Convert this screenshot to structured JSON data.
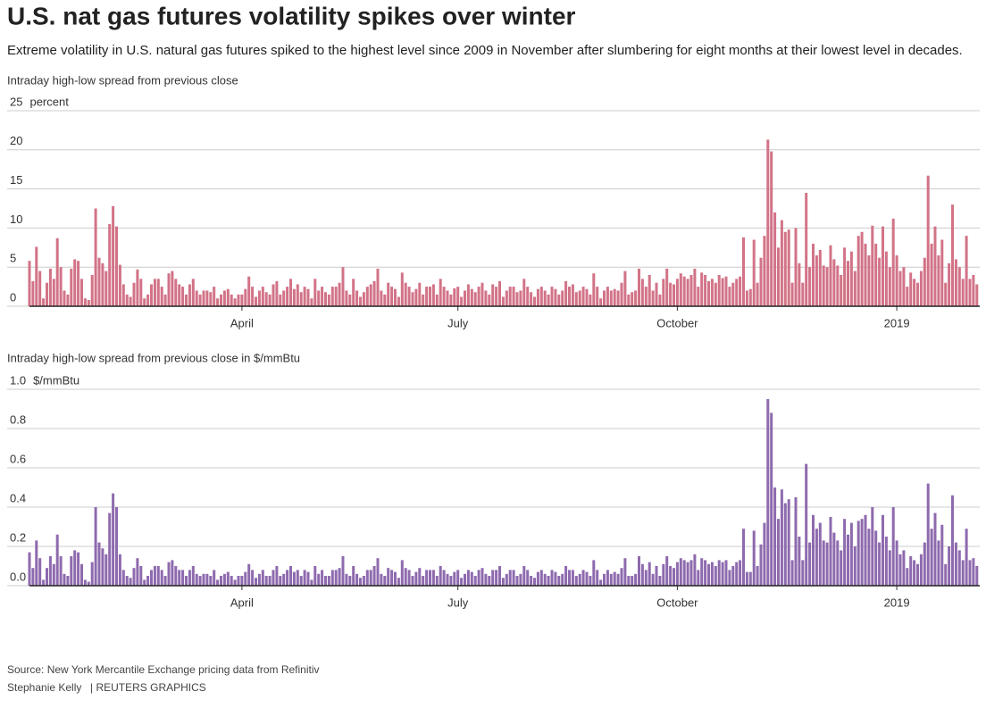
{
  "header": {
    "title": "U.S. nat gas futures volatility spikes over winter",
    "subtitle": "Extreme volatility in U.S. natural gas futures spiked to the highest level since 2009 in November after slumbering for eight months at their lowest level in decades."
  },
  "footer": {
    "source": "Source: New York Mercantile Exchange pricing data from Refinitiv",
    "credit": "Stephanie Kelly",
    "brand": "| REUTERS GRAPHICS"
  },
  "chart_data": [
    {
      "type": "bar",
      "title": "Intraday high-low spread from previous close",
      "y_unit": "percent",
      "color": "#d27387",
      "grid": true,
      "ylim": [
        0,
        25
      ],
      "yticks": [
        0,
        5,
        10,
        15,
        20,
        25
      ],
      "categories": [
        null,
        null,
        null,
        null,
        null,
        null,
        null,
        null,
        null,
        null,
        null,
        null,
        null,
        null,
        null,
        null,
        null,
        null,
        null,
        null,
        null,
        null,
        null,
        null,
        null,
        null,
        null,
        null,
        null,
        null,
        null,
        null,
        null,
        null,
        null,
        null,
        null,
        null,
        null,
        null,
        null,
        null,
        null,
        null,
        null,
        null,
        null,
        null,
        null,
        null,
        null,
        null,
        null,
        null,
        null,
        null,
        null,
        null,
        null,
        null,
        null,
        "April",
        null,
        null,
        null,
        null,
        null,
        null,
        null,
        null,
        null,
        null,
        null,
        null,
        null,
        null,
        null,
        null,
        null,
        null,
        null,
        null,
        null,
        null,
        null,
        null,
        null,
        null,
        null,
        null,
        null,
        null,
        null,
        null,
        null,
        null,
        null,
        null,
        null,
        null,
        null,
        null,
        null,
        null,
        null,
        null,
        null,
        null,
        null,
        null,
        null,
        null,
        null,
        null,
        null,
        null,
        null,
        null,
        null,
        null,
        null,
        null,
        null,
        "July",
        null,
        null,
        null,
        null,
        null,
        null,
        null,
        null,
        null,
        null,
        null,
        null,
        null,
        null,
        null,
        null,
        null,
        null,
        null,
        null,
        null,
        null,
        null,
        null,
        null,
        null,
        null,
        null,
        null,
        null,
        null,
        null,
        null,
        null,
        null,
        null,
        null,
        null,
        null,
        null,
        null,
        null,
        null,
        null,
        null,
        null,
        null,
        null,
        null,
        null,
        null,
        null,
        null,
        null,
        null,
        null,
        null,
        null,
        null,
        null,
        null,
        null,
        "October",
        null,
        null,
        null,
        null,
        null,
        null,
        null,
        null,
        null,
        null,
        null,
        null,
        null,
        null,
        null,
        null,
        null,
        null,
        null,
        null,
        null,
        null,
        null,
        null,
        null,
        null,
        null,
        null,
        null,
        null,
        null,
        null,
        null,
        null,
        null,
        null,
        null,
        null,
        null,
        null,
        null,
        null,
        null,
        null,
        null,
        null,
        null,
        null,
        null,
        null,
        null,
        null,
        null,
        null,
        null,
        null,
        null,
        null,
        null,
        null,
        null,
        null,
        "2019",
        null,
        null,
        null,
        null,
        null,
        null,
        null,
        null,
        null,
        null,
        null,
        null,
        null,
        null,
        null,
        null,
        null,
        null,
        null,
        null,
        null,
        null,
        null
      ],
      "values": [
        5.8,
        3.2,
        7.6,
        4.5,
        1.0,
        3.0,
        4.8,
        3.5,
        8.7,
        5.0,
        2.0,
        1.5,
        4.8,
        6.0,
        5.8,
        3.5,
        1.0,
        0.8,
        4.0,
        12.5,
        6.2,
        5.5,
        4.5,
        10.5,
        12.8,
        10.2,
        5.3,
        2.8,
        1.5,
        1.2,
        3.0,
        4.7,
        3.5,
        1.0,
        1.5,
        2.8,
        3.5,
        3.5,
        2.5,
        1.5,
        4.2,
        4.5,
        3.5,
        2.8,
        2.5,
        1.5,
        2.8,
        3.5,
        2.0,
        1.5,
        2.0,
        2.0,
        1.8,
        2.5,
        1.0,
        1.5,
        2.0,
        2.2,
        1.5,
        1.0,
        1.5,
        1.5,
        2.2,
        3.8,
        2.5,
        1.2,
        2.0,
        2.5,
        1.8,
        1.5,
        2.8,
        3.2,
        1.5,
        2.0,
        2.5,
        3.5,
        2.2,
        2.8,
        1.8,
        2.5,
        2.2,
        1.0,
        3.5,
        2.0,
        2.5,
        1.8,
        1.5,
        2.5,
        2.5,
        3.0,
        5.0,
        2.0,
        1.5,
        3.5,
        2.0,
        1.2,
        1.8,
        2.5,
        2.8,
        3.2,
        4.8,
        2.0,
        1.5,
        3.0,
        2.5,
        2.2,
        1.2,
        4.3,
        3.0,
        2.5,
        1.8,
        2.2,
        3.0,
        1.5,
        2.5,
        2.5,
        2.8,
        1.5,
        3.5,
        2.5,
        2.0,
        1.5,
        2.3,
        2.5,
        1.2,
        2.0,
        2.8,
        2.2,
        1.8,
        2.5,
        3.0,
        2.0,
        1.5,
        2.8,
        2.5,
        3.2,
        1.2,
        2.0,
        2.5,
        2.5,
        1.8,
        2.0,
        3.5,
        2.5,
        1.8,
        1.2,
        2.2,
        2.5,
        2.0,
        1.5,
        2.5,
        2.2,
        1.5,
        2.0,
        3.2,
        2.5,
        2.8,
        1.8,
        2.0,
        2.5,
        2.2,
        1.5,
        4.2,
        2.5,
        1.0,
        2.0,
        2.5,
        2.0,
        2.2,
        2.0,
        3.0,
        4.5,
        1.5,
        1.8,
        2.0,
        4.8,
        3.5,
        2.5,
        4.0,
        2.0,
        3.0,
        1.5,
        3.5,
        4.8,
        3.0,
        2.8,
        3.5,
        4.2,
        3.8,
        3.5,
        4.0,
        4.8,
        2.5,
        4.3,
        4.0,
        3.2,
        3.5,
        3.0,
        4.0,
        3.6,
        3.8,
        2.5,
        3.0,
        3.5,
        3.8,
        8.8,
        2.0,
        2.2,
        8.5,
        3.0,
        6.2,
        9.0,
        21.3,
        19.8,
        12.0,
        7.5,
        11.0,
        9.5,
        9.8,
        3.0,
        10.0,
        5.5,
        3.0,
        14.5,
        5.0,
        8.0,
        6.5,
        7.2,
        5.2,
        5.0,
        7.8,
        6.0,
        5.2,
        4.0,
        7.5,
        5.8,
        7.0,
        4.5,
        9.0,
        9.5,
        8.0,
        6.5,
        10.3,
        8.0,
        6.2,
        10.2,
        7.0,
        5.0,
        11.2,
        6.5,
        4.5,
        5.0,
        2.5,
        4.3,
        3.5,
        3.0,
        4.5,
        6.2,
        16.7,
        8.0,
        10.2,
        6.5,
        8.5,
        3.0,
        5.5,
        13.0,
        6.0,
        5.0,
        3.5,
        9.0,
        3.5,
        4.0,
        2.8
      ]
    },
    {
      "type": "bar",
      "title": "Intraday high-low spread from previous close in $/mmBtu",
      "y_unit": "$/mmBtu",
      "color": "#8e6aae",
      "grid": true,
      "ylim": [
        0,
        1
      ],
      "yticks": [
        {
          "value": 0,
          "label": "0.0"
        },
        0.2,
        0.4,
        0.6,
        0.8,
        {
          "value": 1,
          "label": "1.0"
        }
      ],
      "categories": [
        null,
        null,
        null,
        null,
        null,
        null,
        null,
        null,
        null,
        null,
        null,
        null,
        null,
        null,
        null,
        null,
        null,
        null,
        null,
        null,
        null,
        null,
        null,
        null,
        null,
        null,
        null,
        null,
        null,
        null,
        null,
        null,
        null,
        null,
        null,
        null,
        null,
        null,
        null,
        null,
        null,
        null,
        null,
        null,
        null,
        null,
        null,
        null,
        null,
        null,
        null,
        null,
        null,
        null,
        null,
        null,
        null,
        null,
        null,
        null,
        null,
        "April",
        null,
        null,
        null,
        null,
        null,
        null,
        null,
        null,
        null,
        null,
        null,
        null,
        null,
        null,
        null,
        null,
        null,
        null,
        null,
        null,
        null,
        null,
        null,
        null,
        null,
        null,
        null,
        null,
        null,
        null,
        null,
        null,
        null,
        null,
        null,
        null,
        null,
        null,
        null,
        null,
        null,
        null,
        null,
        null,
        null,
        null,
        null,
        null,
        null,
        null,
        null,
        null,
        null,
        null,
        null,
        null,
        null,
        null,
        null,
        null,
        null,
        "July",
        null,
        null,
        null,
        null,
        null,
        null,
        null,
        null,
        null,
        null,
        null,
        null,
        null,
        null,
        null,
        null,
        null,
        null,
        null,
        null,
        null,
        null,
        null,
        null,
        null,
        null,
        null,
        null,
        null,
        null,
        null,
        null,
        null,
        null,
        null,
        null,
        null,
        null,
        null,
        null,
        null,
        null,
        null,
        null,
        null,
        null,
        null,
        null,
        null,
        null,
        null,
        null,
        null,
        null,
        null,
        null,
        null,
        null,
        null,
        null,
        null,
        null,
        "October",
        null,
        null,
        null,
        null,
        null,
        null,
        null,
        null,
        null,
        null,
        null,
        null,
        null,
        null,
        null,
        null,
        null,
        null,
        null,
        null,
        null,
        null,
        null,
        null,
        null,
        null,
        null,
        null,
        null,
        null,
        null,
        null,
        null,
        null,
        null,
        null,
        null,
        null,
        null,
        null,
        null,
        null,
        null,
        null,
        null,
        null,
        null,
        null,
        null,
        null,
        null,
        null,
        null,
        null,
        null,
        null,
        null,
        null,
        null,
        null,
        null,
        null,
        "2019",
        null,
        null,
        null,
        null,
        null,
        null,
        null,
        null,
        null,
        null,
        null,
        null,
        null,
        null,
        null,
        null,
        null,
        null,
        null,
        null,
        null,
        null,
        null
      ],
      "values": [
        0.17,
        0.09,
        0.23,
        0.14,
        0.03,
        0.09,
        0.15,
        0.11,
        0.26,
        0.15,
        0.06,
        0.05,
        0.15,
        0.18,
        0.17,
        0.11,
        0.03,
        0.02,
        0.12,
        0.4,
        0.22,
        0.19,
        0.16,
        0.37,
        0.47,
        0.4,
        0.16,
        0.08,
        0.05,
        0.04,
        0.09,
        0.14,
        0.1,
        0.03,
        0.05,
        0.08,
        0.1,
        0.1,
        0.08,
        0.05,
        0.12,
        0.13,
        0.1,
        0.08,
        0.08,
        0.05,
        0.08,
        0.1,
        0.06,
        0.05,
        0.06,
        0.06,
        0.05,
        0.08,
        0.03,
        0.05,
        0.06,
        0.07,
        0.05,
        0.03,
        0.05,
        0.05,
        0.07,
        0.11,
        0.08,
        0.04,
        0.06,
        0.08,
        0.05,
        0.05,
        0.08,
        0.1,
        0.05,
        0.06,
        0.08,
        0.1,
        0.07,
        0.08,
        0.05,
        0.08,
        0.07,
        0.03,
        0.1,
        0.06,
        0.08,
        0.05,
        0.05,
        0.08,
        0.08,
        0.09,
        0.15,
        0.06,
        0.05,
        0.1,
        0.06,
        0.04,
        0.05,
        0.08,
        0.08,
        0.1,
        0.14,
        0.06,
        0.05,
        0.09,
        0.08,
        0.07,
        0.04,
        0.13,
        0.09,
        0.08,
        0.05,
        0.07,
        0.09,
        0.05,
        0.08,
        0.08,
        0.08,
        0.05,
        0.1,
        0.08,
        0.06,
        0.05,
        0.07,
        0.08,
        0.04,
        0.06,
        0.08,
        0.07,
        0.05,
        0.08,
        0.09,
        0.06,
        0.05,
        0.08,
        0.08,
        0.1,
        0.04,
        0.06,
        0.08,
        0.08,
        0.05,
        0.06,
        0.1,
        0.08,
        0.05,
        0.04,
        0.07,
        0.08,
        0.06,
        0.05,
        0.08,
        0.07,
        0.05,
        0.06,
        0.1,
        0.08,
        0.08,
        0.05,
        0.06,
        0.08,
        0.07,
        0.05,
        0.13,
        0.08,
        0.03,
        0.06,
        0.08,
        0.06,
        0.07,
        0.06,
        0.09,
        0.14,
        0.05,
        0.05,
        0.06,
        0.15,
        0.11,
        0.08,
        0.12,
        0.06,
        0.1,
        0.05,
        0.11,
        0.15,
        0.1,
        0.09,
        0.12,
        0.14,
        0.13,
        0.12,
        0.13,
        0.16,
        0.08,
        0.14,
        0.13,
        0.11,
        0.12,
        0.1,
        0.13,
        0.12,
        0.13,
        0.08,
        0.1,
        0.12,
        0.13,
        0.29,
        0.07,
        0.07,
        0.28,
        0.1,
        0.21,
        0.32,
        0.95,
        0.88,
        0.5,
        0.34,
        0.49,
        0.42,
        0.44,
        0.13,
        0.45,
        0.25,
        0.13,
        0.62,
        0.22,
        0.36,
        0.29,
        0.32,
        0.23,
        0.22,
        0.35,
        0.27,
        0.23,
        0.18,
        0.34,
        0.26,
        0.32,
        0.2,
        0.33,
        0.34,
        0.36,
        0.29,
        0.4,
        0.28,
        0.22,
        0.36,
        0.25,
        0.18,
        0.4,
        0.23,
        0.16,
        0.18,
        0.09,
        0.15,
        0.13,
        0.11,
        0.16,
        0.22,
        0.52,
        0.29,
        0.37,
        0.23,
        0.31,
        0.11,
        0.2,
        0.46,
        0.22,
        0.18,
        0.13,
        0.29,
        0.13,
        0.14,
        0.1
      ]
    }
  ]
}
